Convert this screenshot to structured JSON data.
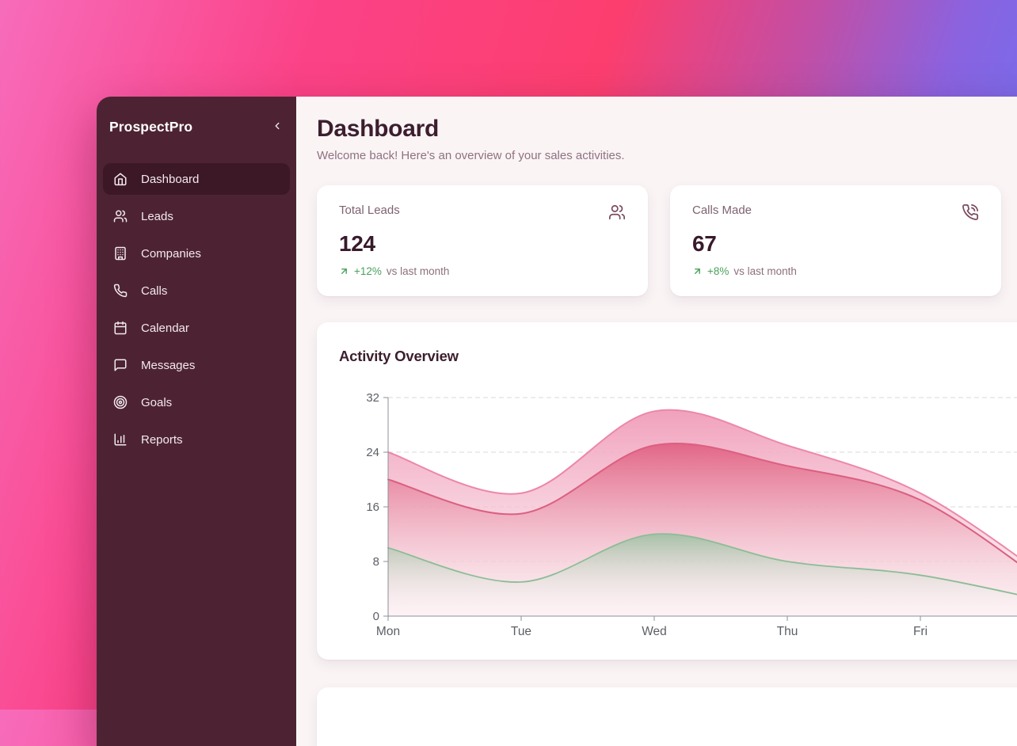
{
  "app": {
    "brand": "ProspectPro"
  },
  "sidebar": {
    "items": [
      {
        "label": "Dashboard",
        "icon": "home",
        "active": true
      },
      {
        "label": "Leads",
        "icon": "users",
        "active": false
      },
      {
        "label": "Companies",
        "icon": "building",
        "active": false
      },
      {
        "label": "Calls",
        "icon": "phone",
        "active": false
      },
      {
        "label": "Calendar",
        "icon": "calendar",
        "active": false
      },
      {
        "label": "Messages",
        "icon": "message-square",
        "active": false
      },
      {
        "label": "Goals",
        "icon": "target",
        "active": false
      },
      {
        "label": "Reports",
        "icon": "bar-chart",
        "active": false
      }
    ]
  },
  "header": {
    "title": "Dashboard",
    "subtitle": "Welcome back! Here's an overview of your sales activities."
  },
  "stat_cards": [
    {
      "label": "Total Leads",
      "value": "124",
      "icon": "users",
      "trend": "up",
      "change": "+12%",
      "change_suffix": "vs last month"
    },
    {
      "label": "Calls Made",
      "value": "67",
      "icon": "phone-call",
      "trend": "up",
      "change": "+8%",
      "change_suffix": "vs last month"
    }
  ],
  "activity_card": {
    "title": "Activity Overview"
  },
  "chart_data": {
    "type": "area",
    "title": "Activity Overview",
    "x": [
      "Mon",
      "Tue",
      "Wed",
      "Thu",
      "Fri"
    ],
    "yticks": [
      0,
      8,
      16,
      24,
      32
    ],
    "ylim": [
      0,
      32
    ],
    "grid": "horizontal-dashed",
    "legend": false,
    "series": [
      {
        "name": "band-light-pink",
        "stroke": "#ec87a8",
        "fill_top": "#f09cb8",
        "fill_top_opacity": 0.95,
        "fill_bottom": "#fbe9ee",
        "fill_bottom_opacity": 0.55,
        "values": [
          24,
          18,
          30,
          25,
          18
        ],
        "offscreen_tail": 5
      },
      {
        "name": "area-rose",
        "stroke": "#db5f81",
        "fill_top": "#e16283",
        "fill_top_opacity": 0.95,
        "fill_bottom": "#f9ebee",
        "fill_bottom_opacity": 0.12,
        "values": [
          20,
          15,
          25,
          22,
          17
        ],
        "offscreen_tail": 4
      },
      {
        "name": "area-green",
        "stroke": "#8cbd96",
        "fill_top": "#98c1a0",
        "fill_top_opacity": 0.85,
        "fill_bottom": "#ffffff",
        "fill_bottom_opacity": 0.0,
        "values": [
          10,
          5,
          12,
          8,
          6
        ],
        "offscreen_tail": 2
      }
    ]
  },
  "colors": {
    "sidebar_bg": "#4d2333",
    "sidebar_active": "#3c1827",
    "main_bg": "#faf4f5",
    "title": "#3c1e2e",
    "muted": "#8f7280",
    "green": "#4ba15c",
    "grid_line": "#d8d8da",
    "axis_line": "#8b9097",
    "tick_text": "#5c6066"
  }
}
